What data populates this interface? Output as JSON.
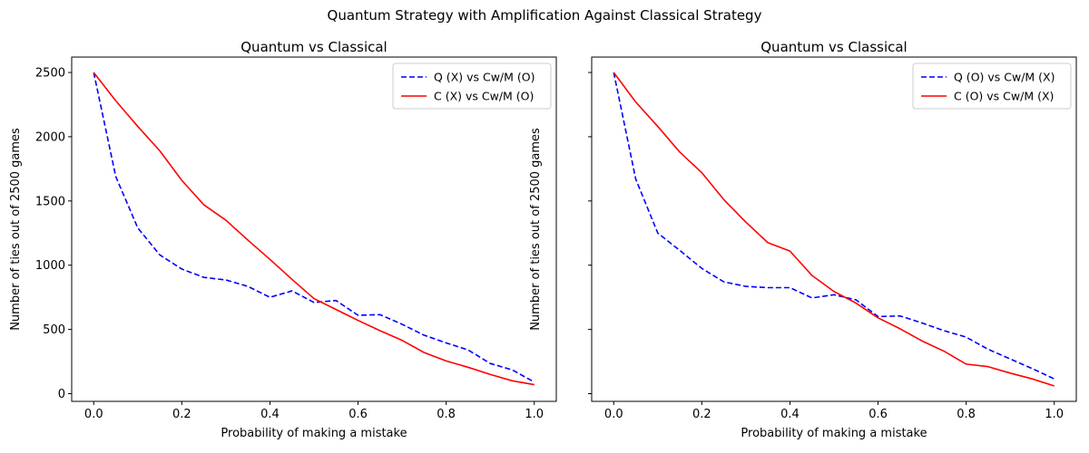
{
  "figure": {
    "suptitle": "Quantum Strategy with Amplification Against Classical Strategy"
  },
  "chart_data": [
    {
      "type": "line",
      "title": "Quantum vs Classical",
      "xlabel": "Probability of making a mistake",
      "ylabel": "Number of ties out of 2500 games",
      "xlim": [
        -0.05,
        1.05
      ],
      "ylim": [
        -60,
        2620
      ],
      "xticks": [
        0.0,
        0.2,
        0.4,
        0.6,
        0.8,
        1.0
      ],
      "xtick_labels": [
        "0.0",
        "0.2",
        "0.4",
        "0.6",
        "0.8",
        "1.0"
      ],
      "yticks": [
        0,
        500,
        1000,
        1500,
        2000,
        2500
      ],
      "ytick_labels": [
        "0",
        "500",
        "1000",
        "1500",
        "2000",
        "2500"
      ],
      "show_ytick_labels": true,
      "legend_position": "top-right",
      "grid": false,
      "x": [
        0.0,
        0.05,
        0.1,
        0.15,
        0.2,
        0.25,
        0.3,
        0.35,
        0.4,
        0.45,
        0.5,
        0.55,
        0.6,
        0.65,
        0.7,
        0.75,
        0.8,
        0.85,
        0.9,
        0.95,
        1.0
      ],
      "series": [
        {
          "name": "Q (X) vs Cw/M (O)",
          "color": "#0000ff",
          "dash": "dashed",
          "values": [
            2500,
            1690,
            1290,
            1080,
            970,
            905,
            885,
            835,
            750,
            800,
            710,
            725,
            610,
            615,
            540,
            455,
            395,
            340,
            235,
            185,
            90
          ]
        },
        {
          "name": "C (X) vs Cw/M (O)",
          "color": "#ff0000",
          "dash": "solid",
          "values": [
            2500,
            2280,
            2080,
            1890,
            1660,
            1470,
            1350,
            1195,
            1045,
            890,
            740,
            655,
            570,
            490,
            415,
            320,
            255,
            205,
            150,
            100,
            70
          ]
        }
      ]
    },
    {
      "type": "line",
      "title": "Quantum vs Classical",
      "xlabel": "Probability of making a mistake",
      "ylabel": "Number of ties out of 2500 games",
      "xlim": [
        -0.05,
        1.05
      ],
      "ylim": [
        -60,
        2620
      ],
      "xticks": [
        0.0,
        0.2,
        0.4,
        0.6,
        0.8,
        1.0
      ],
      "xtick_labels": [
        "0.0",
        "0.2",
        "0.4",
        "0.6",
        "0.8",
        "1.0"
      ],
      "yticks": [
        0,
        500,
        1000,
        1500,
        2000,
        2500
      ],
      "ytick_labels": [
        "",
        "",
        "",
        "",
        "",
        ""
      ],
      "show_ytick_labels": false,
      "legend_position": "top-right",
      "grid": false,
      "x": [
        0.0,
        0.05,
        0.1,
        0.15,
        0.2,
        0.25,
        0.3,
        0.35,
        0.4,
        0.45,
        0.5,
        0.55,
        0.6,
        0.65,
        0.7,
        0.75,
        0.8,
        0.85,
        0.9,
        0.95,
        1.0
      ],
      "series": [
        {
          "name": "Q (O) vs Cw/M (X)",
          "color": "#0000ff",
          "dash": "dashed",
          "values": [
            2500,
            1670,
            1250,
            1115,
            975,
            870,
            835,
            825,
            825,
            745,
            770,
            730,
            600,
            605,
            550,
            490,
            440,
            345,
            270,
            195,
            115
          ]
        },
        {
          "name": "C (O) vs Cw/M (X)",
          "color": "#ff0000",
          "dash": "solid",
          "values": [
            2500,
            2270,
            2080,
            1880,
            1720,
            1510,
            1335,
            1175,
            1110,
            920,
            795,
            705,
            590,
            505,
            410,
            330,
            230,
            210,
            160,
            115,
            60
          ]
        }
      ]
    }
  ]
}
